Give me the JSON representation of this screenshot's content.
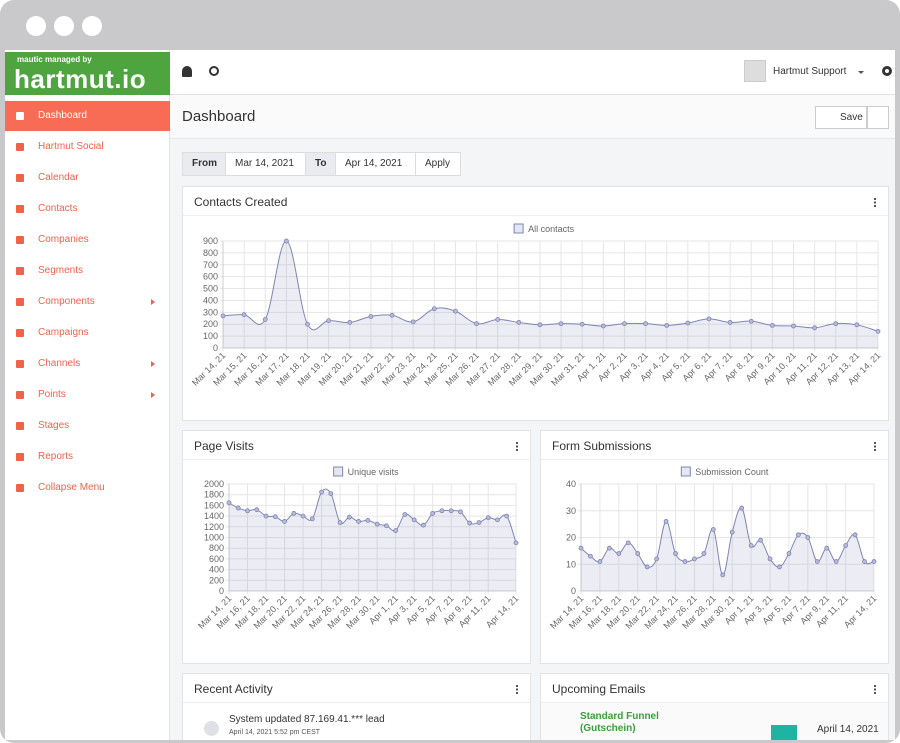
{
  "logo": {
    "tagline": "mautic managed by",
    "name": "hartmut.io"
  },
  "menu": [
    "Dashboard",
    "Hartmut Social",
    "Calendar",
    "Contacts",
    "Companies",
    "Segments",
    "Components",
    "Campaigns",
    "Channels",
    "Points",
    "Stages",
    "Reports",
    "Collapse Menu"
  ],
  "header": {
    "user": "Hartmut Support"
  },
  "page": {
    "title": "Dashboard",
    "save": "Save"
  },
  "date_range": {
    "from_label": "From",
    "from": "Mar 14, 2021",
    "to_label": "To",
    "to": "Apr 14, 2021",
    "apply": "Apply"
  },
  "chart_data": [
    {
      "type": "line",
      "title": "Contacts Created",
      "categories": [
        "Mar 14, 21",
        "Mar 15, 21",
        "Mar 16, 21",
        "Mar 17, 21",
        "Mar 18, 21",
        "Mar 19, 21",
        "Mar 20, 21",
        "Mar 21, 21",
        "Mar 22, 21",
        "Mar 23, 21",
        "Mar 24, 21",
        "Mar 25, 21",
        "Mar 26, 21",
        "Mar 27, 21",
        "Mar 28, 21",
        "Mar 29, 21",
        "Mar 30, 21",
        "Mar 31, 21",
        "Apr 1, 21",
        "Apr 2, 21",
        "Apr 3, 21",
        "Apr 4, 21",
        "Apr 5, 21",
        "Apr 6, 21",
        "Apr 7, 21",
        "Apr 8, 21",
        "Apr 9, 21",
        "Apr 10, 21",
        "Apr 11, 21",
        "Apr 12, 21",
        "Apr 13, 21",
        "Apr 14, 21"
      ],
      "series": [
        {
          "name": "All contacts",
          "color": "#7f85b4",
          "values": [
            270,
            280,
            240,
            900,
            200,
            230,
            215,
            265,
            275,
            220,
            330,
            310,
            205,
            240,
            215,
            195,
            205,
            200,
            185,
            205,
            205,
            190,
            210,
            245,
            215,
            225,
            190,
            185,
            170,
            205,
            195,
            140
          ]
        }
      ],
      "ylim": [
        0,
        900
      ],
      "yticks": [
        0,
        100,
        200,
        300,
        400,
        500,
        600,
        700,
        800,
        900
      ],
      "grid": true,
      "legend": "top"
    },
    {
      "type": "line",
      "title": "Page Visits",
      "categories": [
        "Mar 14, 21",
        null,
        "Mar 16, 21",
        null,
        "Mar 18, 21",
        null,
        "Mar 20, 21",
        null,
        "Mar 22, 21",
        null,
        "Mar 24, 21",
        null,
        "Mar 26, 21",
        null,
        "Mar 28, 21",
        null,
        "Mar 30, 21",
        null,
        "Apr 1, 21",
        null,
        "Apr 3, 21",
        null,
        "Apr 5, 21",
        null,
        "Apr 7, 21",
        null,
        "Apr 9, 21",
        null,
        "Apr 11, 21",
        null,
        null,
        "Apr 14, 21"
      ],
      "series": [
        {
          "name": "Unique visits",
          "color": "#7f85b4",
          "values": [
            1650,
            1550,
            1500,
            1520,
            1400,
            1390,
            1300,
            1450,
            1400,
            1350,
            1850,
            1820,
            1280,
            1380,
            1300,
            1320,
            1250,
            1220,
            1130,
            1430,
            1330,
            1230,
            1450,
            1500,
            1500,
            1480,
            1270,
            1280,
            1370,
            1330,
            1400,
            900
          ]
        }
      ],
      "ylim": [
        0,
        2000
      ],
      "yticks": [
        0,
        200,
        400,
        600,
        800,
        1000,
        1200,
        1400,
        1600,
        1800,
        2000
      ],
      "grid": true,
      "legend": "top"
    },
    {
      "type": "line",
      "title": "Form Submissions",
      "categories": [
        "Mar 14, 21",
        null,
        "Mar 16, 21",
        null,
        "Mar 18, 21",
        null,
        "Mar 20, 21",
        null,
        "Mar 22, 21",
        null,
        "Mar 24, 21",
        null,
        "Mar 26, 21",
        null,
        "Mar 28, 21",
        null,
        "Mar 30, 21",
        null,
        "Apr 1, 21",
        null,
        "Apr 3, 21",
        null,
        "Apr 5, 21",
        null,
        "Apr 7, 21",
        null,
        "Apr 9, 21",
        null,
        "Apr 11, 21",
        null,
        null,
        "Apr 14, 21"
      ],
      "series": [
        {
          "name": "Submission Count",
          "color": "#7f85b4",
          "values": [
            16,
            13,
            11,
            16,
            14,
            18,
            14,
            9,
            12,
            26,
            14,
            11,
            12,
            14,
            23,
            6,
            22,
            31,
            17,
            19,
            12,
            9,
            14,
            21,
            20,
            11,
            16,
            11,
            17,
            21,
            11,
            11
          ]
        }
      ],
      "ylim": [
        0,
        40
      ],
      "yticks": [
        0,
        10,
        20,
        30,
        40
      ],
      "grid": true,
      "legend": "top"
    }
  ],
  "recent_activity": {
    "title": "Recent Activity",
    "items": [
      {
        "text": "System updated 87.169.41.*** lead",
        "time": "April 14, 2021 5:52 pm CEST"
      }
    ]
  },
  "upcoming_emails": {
    "title": "Upcoming Emails",
    "items": [
      {
        "name": "Standard Funnel (Gutschein)",
        "date": "April 14, 2021"
      }
    ]
  }
}
